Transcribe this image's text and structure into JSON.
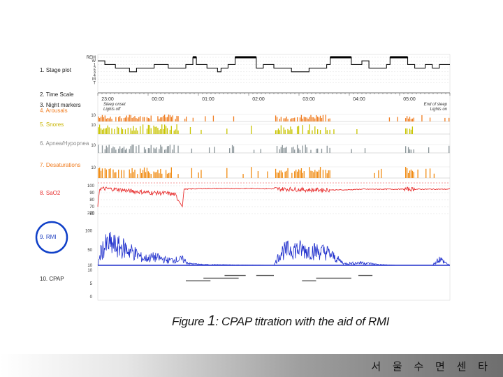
{
  "caption": {
    "prefix": "Figure ",
    "number": "1",
    "text": ": CPAP titration with the aid of RMI"
  },
  "footer": {
    "text": "서 울 수 면 센 타"
  },
  "colors": {
    "arousal": "#f07c20",
    "snore": "#c8c400",
    "apnea": "#8a9498",
    "desaturation": "#f08a10",
    "sao2": "#e83030",
    "rmi": "#1e2ecc",
    "rmi_circle": "#1040c8",
    "label_orange": "#f07c20",
    "label_yellow": "#c8b400",
    "label_gray": "#8a8a8a",
    "label_red": "#e83030",
    "label_blue": "#2040c0",
    "label_black": "#222222"
  },
  "chart_data": {
    "type": "line",
    "rows": [
      {
        "id": "stage",
        "label": "1. Stage plot",
        "ticks": [
          "REM",
          "W",
          "1",
          "2",
          "3",
          "4",
          "M",
          "T"
        ]
      },
      {
        "id": "time",
        "label": "2. Time Scale",
        "ticks": [
          "23:00",
          "00:00",
          "01:00",
          "02:00",
          "03:00",
          "04:00",
          "05:00"
        ]
      },
      {
        "id": "markers",
        "label": "3. Night markers",
        "ticks": [
          "Sleep onset",
          "Lights off",
          "End of sleep",
          "Lights on"
        ]
      },
      {
        "id": "arousals",
        "label": "4. Arousals",
        "ticks": [
          "10"
        ]
      },
      {
        "id": "snores",
        "label": "5. Snores",
        "ticks": [
          "10"
        ]
      },
      {
        "id": "apnea",
        "label": "6. Apnea/Hypopnea",
        "ticks": [
          "10"
        ]
      },
      {
        "id": "desat",
        "label": "7. Desaturations",
        "ticks": [
          "10"
        ]
      },
      {
        "id": "sao2",
        "label": "8. SaO2",
        "ticks": [
          "100",
          "90",
          "80",
          "70",
          "60",
          "270"
        ]
      },
      {
        "id": "rmi",
        "label": "9. RMI",
        "ticks": [
          "100",
          "50",
          "10"
        ]
      },
      {
        "id": "cpap",
        "label": "10. CPAP",
        "ticks": [
          "10",
          "5",
          "0"
        ]
      }
    ],
    "x_range": [
      "22:50",
      "05:50"
    ],
    "stage_segments": [
      [
        0.0,
        1
      ],
      [
        0.02,
        2
      ],
      [
        0.05,
        3
      ],
      [
        0.09,
        4
      ],
      [
        0.11,
        3
      ],
      [
        0.16,
        2
      ],
      [
        0.2,
        3
      ],
      [
        0.25,
        2
      ],
      [
        0.27,
        0
      ],
      [
        0.28,
        2
      ],
      [
        0.31,
        3
      ],
      [
        0.34,
        4
      ],
      [
        0.35,
        3
      ],
      [
        0.37,
        2
      ],
      [
        0.39,
        0
      ],
      [
        0.45,
        3
      ],
      [
        0.47,
        2
      ],
      [
        0.5,
        3
      ],
      [
        0.55,
        4
      ],
      [
        0.6,
        3
      ],
      [
        0.65,
        2
      ],
      [
        0.66,
        0
      ],
      [
        0.72,
        2
      ],
      [
        0.75,
        1
      ],
      [
        0.77,
        3
      ],
      [
        0.82,
        2
      ],
      [
        0.83,
        0
      ],
      [
        0.88,
        2
      ],
      [
        0.9,
        3
      ],
      [
        0.93,
        2
      ],
      [
        0.95,
        3
      ],
      [
        0.97,
        2
      ],
      [
        1.0,
        2
      ]
    ],
    "sao2_profile": [
      [
        0.0,
        70
      ],
      [
        0.005,
        96
      ],
      [
        0.05,
        95
      ],
      [
        0.1,
        92
      ],
      [
        0.15,
        90
      ],
      [
        0.2,
        89
      ],
      [
        0.22,
        87
      ],
      [
        0.24,
        70
      ],
      [
        0.245,
        95
      ],
      [
        0.3,
        96
      ],
      [
        0.45,
        96
      ],
      [
        0.55,
        95
      ],
      [
        0.6,
        94
      ],
      [
        0.7,
        94
      ],
      [
        0.75,
        95
      ],
      [
        0.85,
        95
      ],
      [
        1.0,
        95
      ]
    ],
    "rmi_profile": [
      [
        0.0,
        10
      ],
      [
        0.01,
        55
      ],
      [
        0.03,
        75
      ],
      [
        0.06,
        65
      ],
      [
        0.08,
        60
      ],
      [
        0.1,
        50
      ],
      [
        0.13,
        30
      ],
      [
        0.16,
        35
      ],
      [
        0.2,
        25
      ],
      [
        0.24,
        28
      ],
      [
        0.26,
        15
      ],
      [
        0.3,
        12
      ],
      [
        0.4,
        11
      ],
      [
        0.5,
        10
      ],
      [
        0.52,
        50
      ],
      [
        0.55,
        60
      ],
      [
        0.6,
        55
      ],
      [
        0.65,
        50
      ],
      [
        0.7,
        15
      ],
      [
        0.75,
        18
      ],
      [
        0.8,
        12
      ],
      [
        0.85,
        10
      ],
      [
        0.9,
        10
      ],
      [
        0.95,
        10
      ],
      [
        0.97,
        30
      ],
      [
        1.0,
        10
      ]
    ],
    "cpap_steps": [
      [
        0.25,
        0.32,
        6
      ],
      [
        0.3,
        0.4,
        7
      ],
      [
        0.36,
        0.42,
        8
      ],
      [
        0.45,
        0.5,
        8
      ],
      [
        0.58,
        0.62,
        6
      ],
      [
        0.62,
        0.72,
        7
      ],
      [
        0.74,
        0.78,
        8
      ]
    ]
  }
}
